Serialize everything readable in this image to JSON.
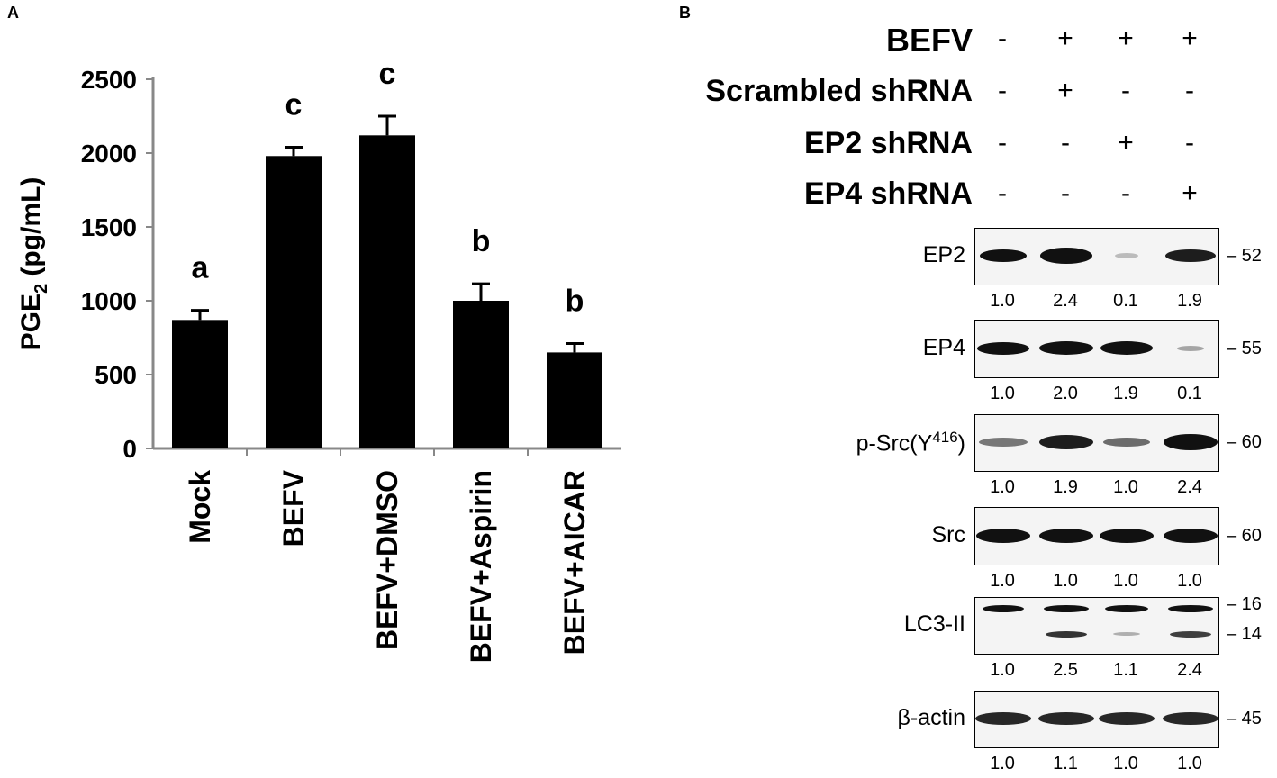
{
  "panel_a_letter": "A",
  "panel_b_letter": "B",
  "chart_data": {
    "type": "bar",
    "ylabel_main": "PGE",
    "ylabel_sub": "2",
    "ylabel_rest": " (pg/mL)",
    "ylim": [
      0,
      2500
    ],
    "yticks": [
      0,
      500,
      1000,
      1500,
      2000,
      2500
    ],
    "categories": [
      "Mock",
      "BEFV",
      "BEFV+DMSO",
      "BEFV+Aspirin",
      "BEFV+AICAR"
    ],
    "values": [
      870,
      1980,
      2120,
      1000,
      650
    ],
    "errors": [
      65,
      60,
      130,
      115,
      60
    ],
    "significance_letters": [
      "a",
      "c",
      "c",
      "b",
      "b"
    ],
    "bar_color": "#000000"
  },
  "western_blot": {
    "conditions": [
      {
        "label": "BEFV",
        "signs": [
          "-",
          "+",
          "+",
          "+"
        ]
      },
      {
        "label": "Scrambled shRNA",
        "signs": [
          "-",
          "+",
          "-",
          "-"
        ]
      },
      {
        "label": "EP2 shRNA",
        "signs": [
          "-",
          "-",
          "+",
          "-"
        ]
      },
      {
        "label": "EP4 shRNA",
        "signs": [
          "-",
          "-",
          "-",
          "+"
        ]
      }
    ],
    "blots": [
      {
        "label": "EP2",
        "markers": [
          "52"
        ],
        "quant": [
          "1.0",
          "2.4",
          "0.1",
          "1.9"
        ]
      },
      {
        "label": "EP4",
        "markers": [
          "55"
        ],
        "quant": [
          "1.0",
          "2.0",
          "1.9",
          "0.1"
        ]
      },
      {
        "label": "p-Src(Y",
        "label_sup": "416",
        "label_end": ")",
        "markers": [
          "60"
        ],
        "quant": [
          "1.0",
          "1.9",
          "1.0",
          "2.4"
        ]
      },
      {
        "label": "Src",
        "markers": [
          "60"
        ],
        "quant": [
          "1.0",
          "1.0",
          "1.0",
          "1.0"
        ]
      },
      {
        "label": "LC3-II",
        "markers": [
          "16",
          "14"
        ],
        "quant": [
          "1.0",
          "2.5",
          "1.1",
          "2.4"
        ]
      },
      {
        "label": "β-actin",
        "markers": [
          "45"
        ],
        "quant": [
          "1.0",
          "1.1",
          "1.0",
          "1.0"
        ]
      }
    ]
  }
}
